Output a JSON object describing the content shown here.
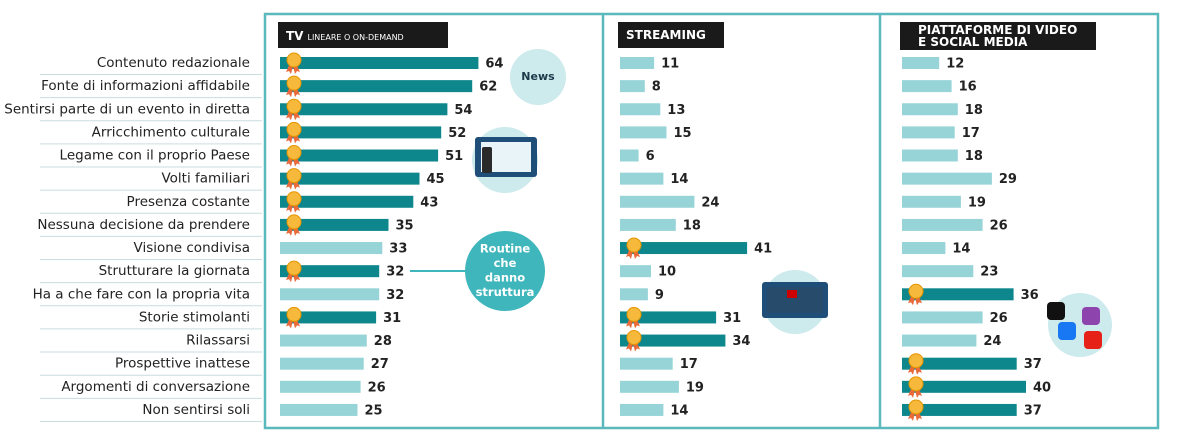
{
  "categories": [
    "Contenuto redazionale",
    "Fonte di informazioni affidabile",
    "Sentirsi parte di un evento in diretta",
    "Arricchimento culturale",
    "Legame con il proprio Paese",
    "Volti familiari",
    "Presenza costante",
    "Nessuna decisione da prendere",
    "Visione condivisa",
    "Strutturare la giornata",
    "Ha a che fare con la propria vita",
    "Storie stimolanti",
    "Rilassarsi",
    "Prospettive inattese",
    "Argomenti di conversazione",
    "Non sentirsi soli"
  ],
  "annotations": {
    "news": "News",
    "routine": [
      "Routine",
      "che",
      "danno",
      "struttura"
    ]
  },
  "chart_data": [
    {
      "type": "bar",
      "title": "TV",
      "subtitle": "LINEARE O ON-DEMAND",
      "highlight_color": "#0e878c",
      "base_color": "#97d4d7",
      "values": [
        64,
        62,
        54,
        52,
        51,
        45,
        43,
        35,
        33,
        32,
        32,
        31,
        28,
        27,
        26,
        25
      ],
      "medals": [
        true,
        true,
        true,
        true,
        true,
        true,
        true,
        true,
        false,
        true,
        false,
        true,
        false,
        false,
        false,
        false
      ]
    },
    {
      "type": "bar",
      "title": "STREAMING",
      "highlight_color": "#0e878c",
      "base_color": "#97d4d7",
      "values": [
        11,
        8,
        13,
        15,
        6,
        14,
        24,
        18,
        41,
        10,
        9,
        31,
        34,
        17,
        19,
        14
      ],
      "medals": [
        false,
        false,
        false,
        false,
        false,
        false,
        false,
        false,
        true,
        false,
        false,
        true,
        true,
        false,
        false,
        false
      ]
    },
    {
      "type": "bar",
      "title": "PIATTAFORME DI VIDEO E SOCIAL MEDIA",
      "highlight_color": "#0e878c",
      "base_color": "#97d4d7",
      "values": [
        12,
        16,
        18,
        17,
        18,
        29,
        19,
        26,
        14,
        23,
        36,
        26,
        24,
        37,
        40,
        37
      ],
      "medals": [
        false,
        false,
        false,
        false,
        false,
        false,
        false,
        false,
        false,
        false,
        true,
        false,
        false,
        true,
        true,
        true
      ]
    }
  ]
}
